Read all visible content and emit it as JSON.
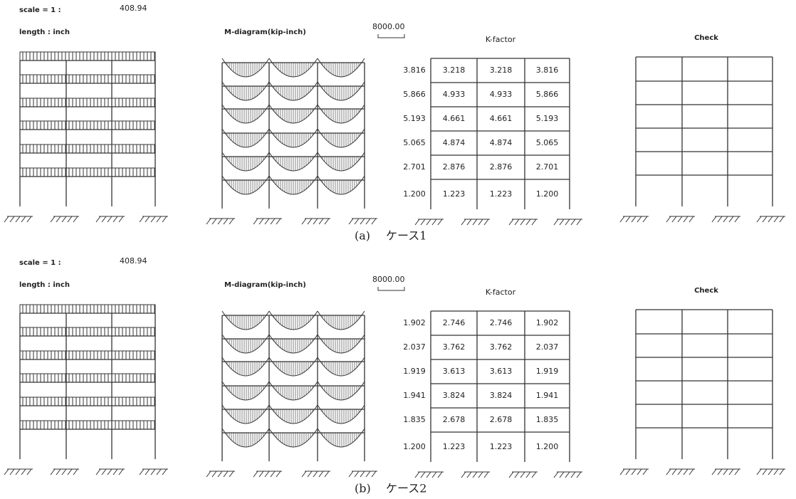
{
  "panels": [
    {
      "scale_label": "scale = 1 :",
      "scale_value": "408.94",
      "length_label": "length : inch",
      "moment_title": "M-diagram(kip-inch)",
      "moment_scale": "8000.00",
      "k_title": "K-factor",
      "check_title": "Check",
      "k_rows": [
        [
          "3.816",
          "3.218",
          "3.218",
          "3.816"
        ],
        [
          "5.866",
          "4.933",
          "4.933",
          "5.866"
        ],
        [
          "5.193",
          "4.661",
          "4.661",
          "5.193"
        ],
        [
          "5.065",
          "4.874",
          "4.874",
          "5.065"
        ],
        [
          "2.701",
          "2.876",
          "2.876",
          "2.701"
        ],
        [
          "1.200",
          "1.223",
          "1.223",
          "1.200"
        ]
      ],
      "caption_label": "(a)",
      "caption_text": "ケース1"
    },
    {
      "scale_label": "scale = 1 :",
      "scale_value": "408.94",
      "length_label": "length : inch",
      "moment_title": "M-diagram(kip-inch)",
      "moment_scale": "8000.00",
      "k_title": "K-factor",
      "check_title": "Check",
      "k_rows": [
        [
          "1.902",
          "2.746",
          "2.746",
          "1.902"
        ],
        [
          "2.037",
          "3.762",
          "3.762",
          "2.037"
        ],
        [
          "1.919",
          "3.613",
          "3.613",
          "1.919"
        ],
        [
          "1.941",
          "3.824",
          "3.824",
          "1.941"
        ],
        [
          "1.835",
          "2.678",
          "2.678",
          "1.835"
        ],
        [
          "1.200",
          "1.223",
          "1.223",
          "1.200"
        ]
      ],
      "caption_label": "(b)",
      "caption_text": "ケース2"
    }
  ]
}
